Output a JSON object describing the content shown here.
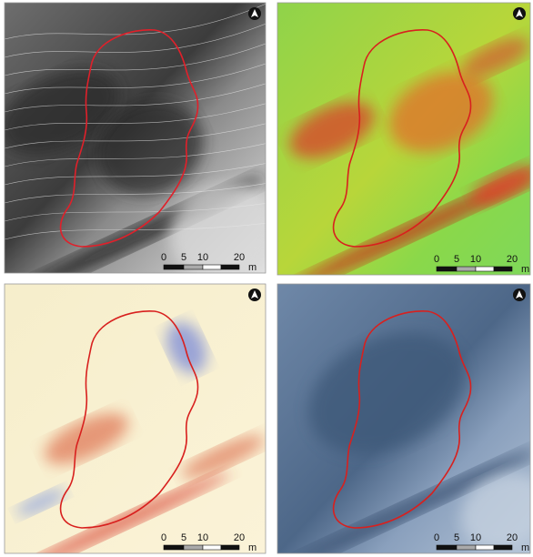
{
  "panels": [
    {
      "scale_labels": [
        "0",
        "5",
        "10",
        "20",
        "m"
      ]
    },
    {
      "scale_labels": [
        "0",
        "5",
        "10",
        "20",
        "m"
      ]
    },
    {
      "scale_labels": [
        "0",
        "5",
        "10",
        "20",
        "m"
      ]
    },
    {
      "scale_labels": [
        "0",
        "5",
        "10",
        "20",
        "m"
      ]
    }
  ]
}
